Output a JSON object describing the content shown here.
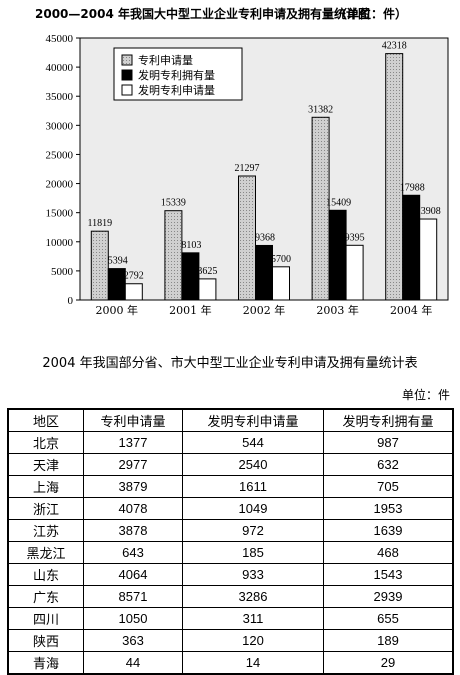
{
  "chart_data": {
    "type": "bar",
    "title": "2000—2004 年我国大中型工业企业专利申请及拥有量统计图",
    "unit": "（单位：件）",
    "categories": [
      "2000 年",
      "2001 年",
      "2002 年",
      "2003 年",
      "2004 年"
    ],
    "series": [
      {
        "name": "专利申请量",
        "values": [
          11819,
          15339,
          21297,
          31382,
          42318
        ],
        "color": "#cccccc"
      },
      {
        "name": "发明专利拥有量",
        "values": [
          5394,
          8103,
          9368,
          15409,
          17988
        ],
        "color": "#000000"
      },
      {
        "name": "发明专利申请量",
        "values": [
          2792,
          3625,
          5700,
          9395,
          13908
        ],
        "color": "#ffffff"
      }
    ],
    "yticks": [
      0,
      5000,
      10000,
      15000,
      20000,
      25000,
      30000,
      35000,
      40000,
      45000
    ],
    "ylim": [
      0,
      45000
    ],
    "legend_position": "top-left"
  },
  "table": {
    "title": "2004 年我国部分省、市大中型工业企业专利申请及拥有量统计表",
    "unit": "单位：件",
    "headers": [
      "地区",
      "专利申请量",
      "发明专利申请量",
      "发明专利拥有量"
    ],
    "rows": [
      [
        "北京",
        "1377",
        "544",
        "987"
      ],
      [
        "天津",
        "2977",
        "2540",
        "632"
      ],
      [
        "上海",
        "3879",
        "1611",
        "705"
      ],
      [
        "浙江",
        "4078",
        "1049",
        "1953"
      ],
      [
        "江苏",
        "3878",
        "972",
        "1639"
      ],
      [
        "黑龙江",
        "643",
        "185",
        "468"
      ],
      [
        "山东",
        "4064",
        "933",
        "1543"
      ],
      [
        "广东",
        "8571",
        "3286",
        "2939"
      ],
      [
        "四川",
        "1050",
        "311",
        "655"
      ],
      [
        "陕西",
        "363",
        "120",
        "189"
      ],
      [
        "青海",
        "44",
        "14",
        "29"
      ]
    ]
  }
}
